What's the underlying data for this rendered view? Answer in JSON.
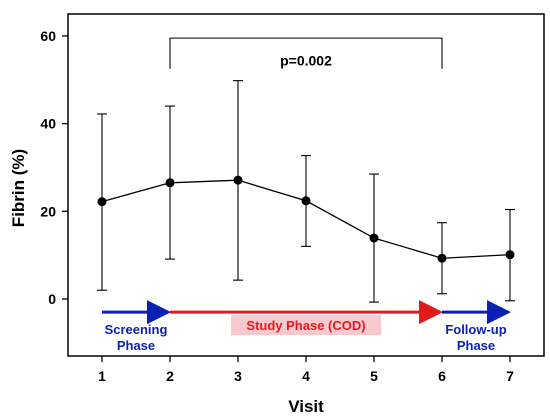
{
  "chart_data": {
    "type": "line",
    "xlabel": "Visit",
    "ylabel": "Fibrin (%)",
    "x": [
      1,
      2,
      3,
      4,
      5,
      6,
      7
    ],
    "y": [
      22.2,
      26.5,
      27.1,
      22.4,
      13.9,
      9.3,
      10.1
    ],
    "y_lower": [
      2.0,
      9.1,
      4.3,
      12.0,
      -0.7,
      1.2,
      -0.4
    ],
    "y_upper": [
      42.2,
      44.0,
      49.8,
      32.7,
      28.5,
      17.4,
      20.4
    ],
    "xlim": [
      0.5,
      7.5
    ],
    "ylim": [
      -13,
      65
    ],
    "xticks": [
      "1",
      "2",
      "3",
      "4",
      "5",
      "6",
      "7"
    ],
    "yticks": [
      "0",
      "20",
      "40",
      "60"
    ],
    "grid": false,
    "bracket": {
      "from": 2,
      "to": 6,
      "label": "p=0.002"
    },
    "phases": [
      {
        "start": 1,
        "end": 2,
        "lines": [
          "Screening",
          "Phase"
        ],
        "color": "#0a1fb3"
      },
      {
        "start": 2,
        "end": 6,
        "lines": [
          "Study Phase (COD)"
        ],
        "color": "#e31a1c",
        "label_background": "#f7c8cd"
      },
      {
        "start": 6,
        "end": 7,
        "lines": [
          "Follow-up",
          "Phase"
        ],
        "color": "#0a1fb3"
      }
    ],
    "line_color": "#000000",
    "marker_color": "#000000"
  }
}
